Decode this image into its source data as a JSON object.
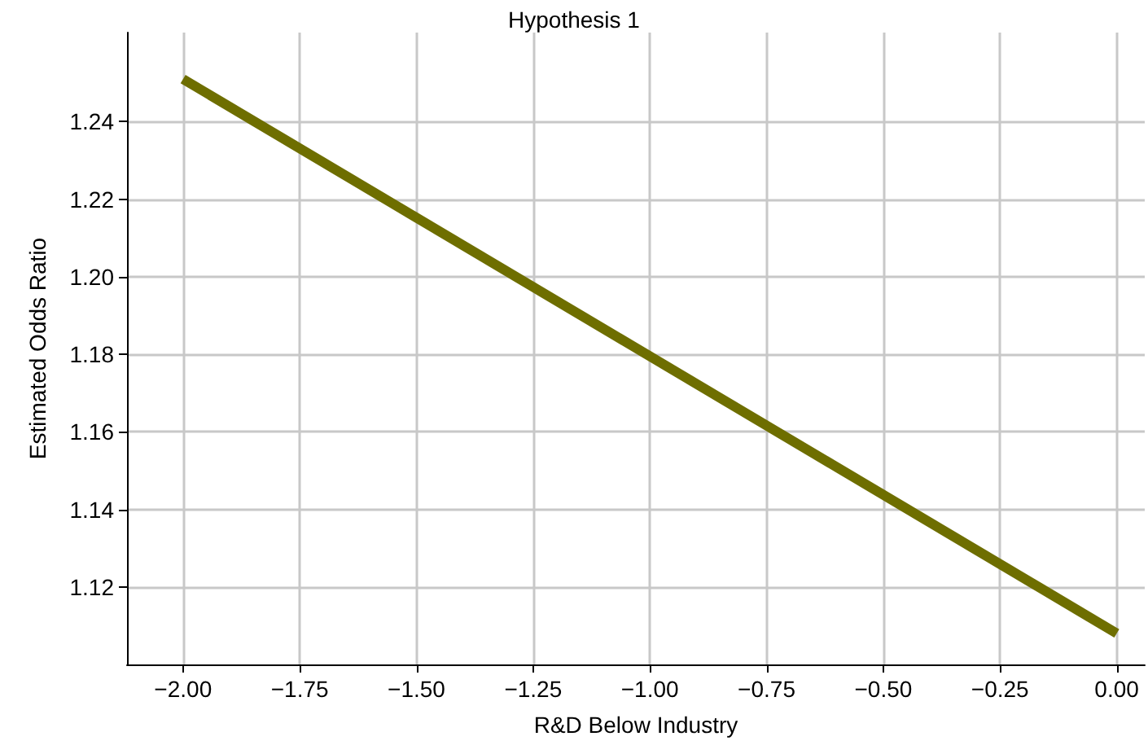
{
  "chart_data": {
    "type": "line",
    "title": "Hypothesis 1",
    "xlabel": "R&D Below Industry",
    "ylabel": "Estimated Odds Ratio",
    "x": [
      -2,
      0
    ],
    "series": [
      {
        "color": "#6e6e00",
        "values": [
          1.251,
          1.108
        ]
      }
    ],
    "xlim": [
      -2.12,
      0.06
    ],
    "xticks": [
      {
        "value": -2,
        "label": "−2.00"
      },
      {
        "value": -1.75,
        "label": "−1.75"
      },
      {
        "value": -1.5,
        "label": "−1.50"
      },
      {
        "value": -1.25,
        "label": "−1.25"
      },
      {
        "value": -1,
        "label": "−1.00"
      },
      {
        "value": -0.75,
        "label": "−0.75"
      },
      {
        "value": -0.5,
        "label": "−0.50"
      },
      {
        "value": -0.25,
        "label": "−0.25"
      },
      {
        "value": 0,
        "label": "0.00"
      }
    ],
    "ylim": [
      1.1,
      1.263
    ],
    "yticks": [
      {
        "value": 1.12,
        "label": "1.12"
      },
      {
        "value": 1.14,
        "label": "1.14"
      },
      {
        "value": 1.16,
        "label": "1.16"
      },
      {
        "value": 1.18,
        "label": "1.18"
      },
      {
        "value": 1.2,
        "label": "1.20"
      },
      {
        "value": 1.22,
        "label": "1.22"
      },
      {
        "value": 1.24,
        "label": "1.24"
      }
    ],
    "grid": true,
    "marker": "none",
    "line_style": "solid"
  }
}
